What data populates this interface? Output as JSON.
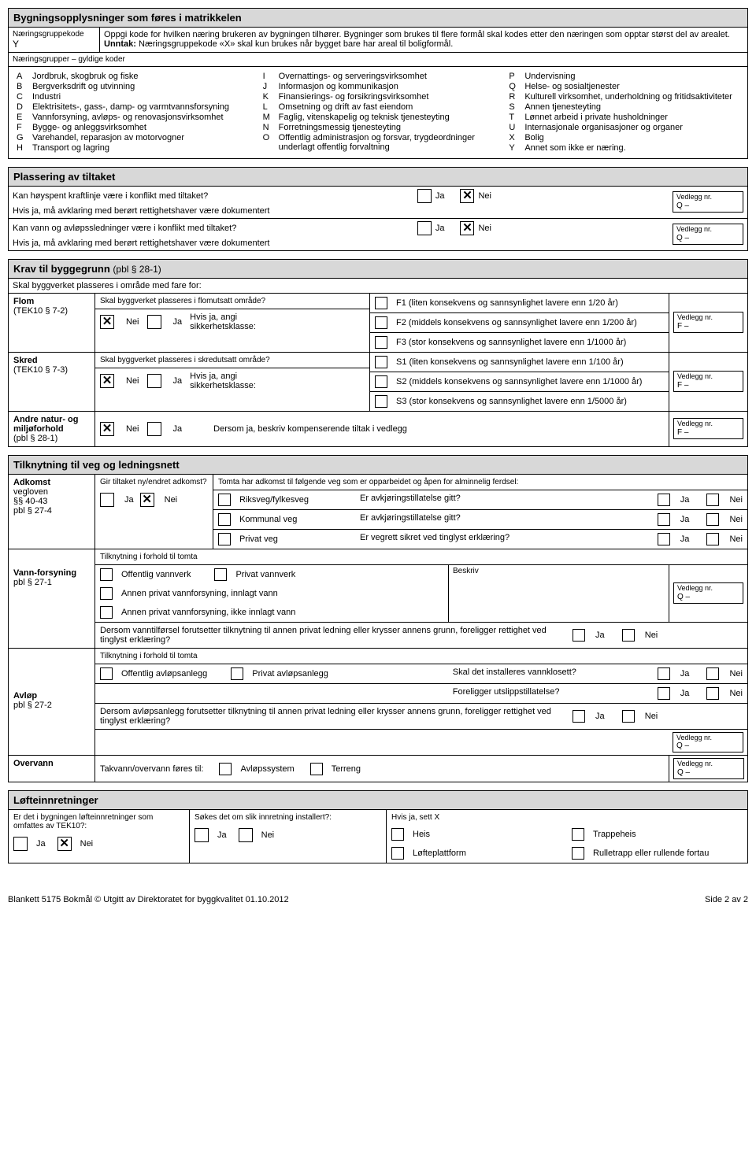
{
  "sec1": {
    "title": "Bygningsopplysninger som føres i matrikkelen",
    "kode_label": "Næringsgruppekode",
    "kode_value": "Y",
    "kode_help": "Oppgi kode for hvilken næring brukeren av bygningen tilhører. Bygninger som brukes til flere formål skal kodes etter den næringen som opptar størst del av arealet. ",
    "kode_help_bold": "Unntak:",
    "kode_help2": " Næringsgruppekode «X» skal kun brukes når bygget bare har areal til boligformål.",
    "gyldige": "Næringsgrupper – gyldige koder",
    "codes": [
      {
        "c": "A",
        "t": "Jordbruk, skogbruk og fiske"
      },
      {
        "c": "B",
        "t": "Bergverksdrift og utvinning"
      },
      {
        "c": "C",
        "t": "Industri"
      },
      {
        "c": "D",
        "t": "Elektrisitets-, gass-, damp- og varmtvannsforsyning"
      },
      {
        "c": "E",
        "t": "Vannforsyning, avløps- og renovasjonsvirksomhet"
      },
      {
        "c": "F",
        "t": "Bygge- og anleggsvirksomhet"
      },
      {
        "c": "G",
        "t": "Varehandel, reparasjon av motorvogner"
      },
      {
        "c": "H",
        "t": "Transport og lagring"
      },
      {
        "c": "I",
        "t": "Overnattings- og serveringsvirksomhet"
      },
      {
        "c": "J",
        "t": "Informasjon og kommunikasjon"
      },
      {
        "c": "K",
        "t": "Finansierings- og forsikringsvirksomhet"
      },
      {
        "c": "L",
        "t": "Omsetning og drift av fast eiendom"
      },
      {
        "c": "M",
        "t": "Faglig, vitenskapelig og teknisk tjenesteyting"
      },
      {
        "c": "N",
        "t": "Forretningsmessig tjenesteyting"
      },
      {
        "c": "O",
        "t": "Offentlig administrasjon og forsvar, trygdeordninger underlagt offentlig forvaltning"
      },
      {
        "c": "P",
        "t": "Undervisning"
      },
      {
        "c": "Q",
        "t": "Helse- og sosialtjenester"
      },
      {
        "c": "R",
        "t": "Kulturell virksomhet, underholdning og fritidsaktiviteter"
      },
      {
        "c": "S",
        "t": "Annen tjenesteyting"
      },
      {
        "c": "T",
        "t": "Lønnet arbeid i private husholdninger"
      },
      {
        "c": "U",
        "t": "Internasjonale organisasjoner og organer"
      },
      {
        "c": "X",
        "t": "Bolig"
      },
      {
        "c": "Y",
        "t": "Annet som ikke er næring."
      }
    ]
  },
  "sec2": {
    "title": "Plassering av tiltaket",
    "q1": "Kan høyspent kraftlinje være i konflikt med tiltaket?",
    "q1sub": "Hvis ja, må avklaring med berørt rettighetshaver være dokumentert",
    "q2": "Kan vann og avløpssledninger være i konflikt med tiltaket?",
    "q2sub": "Hvis ja, må avklaring med berørt rettighetshaver være dokumentert",
    "ja": "Ja",
    "nei": "Nei",
    "vedlegg_hdr": "Vedlegg nr.",
    "vedlegg_val": "Q –"
  },
  "sec3": {
    "title": "Krav til byggegrunn",
    "title_ref": "(pbl § 28-1)",
    "sub": "Skal byggverket plasseres i område med fare for:",
    "flom_lbl": "Flom",
    "flom_ref": "(TEK10 § 7-2)",
    "flom_q": "Skal byggverket plasseres i flomutsatt område?",
    "hvis_ja": "Hvis ja, angi sikkerhetsklasse:",
    "f1": "F1 (liten konsekvens og sannsynlighet lavere enn 1/20 år)",
    "f2": "F2 (middels konsekvens og sannsynlighet lavere enn 1/200 år)",
    "f3": "F3 (stor konsekvens og sannsynlighet lavere enn 1/1000 år)",
    "skred_lbl": "Skred",
    "skred_ref": "(TEK10 § 7-3)",
    "skred_q": "Skal byggverket plasseres i skredutsatt område?",
    "s1": "S1 (liten konsekvens og sannsynlighet lavere enn 1/100 år)",
    "s2": "S2 (middels konsekvens og sannsynlighet lavere enn 1/1000 år)",
    "s3": "S3 (stor konsekvens og sannsynlighet lavere enn 1/5000 år)",
    "andre_lbl": "Andre natur- og miljøforhold",
    "andre_ref": "(pbl § 28-1)",
    "andre_txt": "Dersom ja, beskriv kompenserende tiltak i vedlegg",
    "ja": "Ja",
    "nei": "Nei",
    "vedlegg_hdr": "Vedlegg nr.",
    "vedlegg_f": "F –"
  },
  "sec4": {
    "title": "Tilknytning til veg og ledningsnett",
    "adkomst_lbl": "Adkomst",
    "adkomst_ref1": "vegloven",
    "adkomst_ref2": "§§ 40-43",
    "adkomst_ref3": "pbl § 27-4",
    "gir_q": "Gir tiltaket ny/endret adkomst?",
    "tomta": "Tomta har adkomst til følgende veg som er opparbeidet og åpen for alminnelig ferdsel:",
    "riksveg": "Riksveg/fylkesveg",
    "kommunal": "Kommunal veg",
    "privat": "Privat veg",
    "avkj": "Er avkjøringstillatelse gitt?",
    "vegrett": "Er vegrett sikret ved tinglyst erklæring?",
    "vann_lbl": "Vann-forsyning",
    "vann_ref": "pbl § 27-1",
    "tilknytning": "Tilknytning i forhold til tomta",
    "off_vann": "Offentlig vannverk",
    "priv_vann": "Privat vannverk",
    "annen1": "Annen privat vannforsyning, innlagt vann",
    "annen2": "Annen privat vannforsyning, ikke innlagt vann",
    "beskriv": "Beskriv",
    "dersom_vann": "Dersom vanntilførsel forutsetter tilknytning til annen privat ledning eller krysser annens grunn, foreligger rettighet ved tinglyst erklæring?",
    "avlop_lbl": "Avløp",
    "avlop_ref": "pbl § 27-2",
    "off_avlop": "Offentlig avløpsanlegg",
    "priv_avlop": "Privat avløpsanlegg",
    "vannklosett": "Skal det installeres vannklosett?",
    "utslipp": "Foreligger utslippstillatelse?",
    "dersom_avlop": "Dersom avløpsanlegg forutsetter tilknytning til annen privat ledning eller krysser annens grunn, foreligger rettighet ved tinglyst erklæring?",
    "overvann_lbl": "Overvann",
    "takvann": "Takvann/overvann føres til:",
    "avlopssys": "Avløpssystem",
    "terreng": "Terreng",
    "ja": "Ja",
    "nei": "Nei",
    "vedlegg_hdr": "Vedlegg nr.",
    "vedlegg_q": "Q –"
  },
  "sec5": {
    "title": "Løfteinnretninger",
    "q1": "Er det i bygningen løfteinnretninger som omfattes av TEK10?:",
    "q2": "Søkes det om slik innretning installert?:",
    "q3": "Hvis ja, sett X",
    "heis": "Heis",
    "lofte": "Løfteplattform",
    "trappe": "Trappeheis",
    "rulle": "Rulletrapp eller rullende fortau",
    "ja": "Ja",
    "nei": "Nei"
  },
  "footer": {
    "left": "Blankett 5175 Bokmål   © Utgitt av Direktoratet for byggkvalitet  01.10.2012",
    "right": "Side 2 av 2"
  }
}
